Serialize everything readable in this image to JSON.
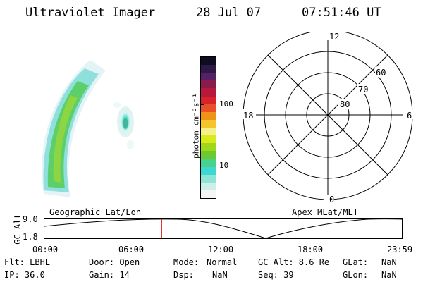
{
  "header": {
    "title": "Ultraviolet Imager",
    "date": "28 Jul 07",
    "time": "07:51:46 UT"
  },
  "colorbar": {
    "unit_label": "photon cm⁻²s⁻¹",
    "ticks": [
      "100",
      "10"
    ]
  },
  "polar": {
    "mlt_labels": {
      "top": "12",
      "left": "18",
      "right": "6",
      "bottom": "0"
    },
    "lat_labels": [
      "60",
      "70",
      "80"
    ]
  },
  "orbit": {
    "left_label": "Geographic Lat/Lon",
    "right_label": "Apex MLat/MLT",
    "y_axis_label": "GC Alt",
    "y_ticks": [
      "9.0",
      "1.8"
    ],
    "x_ticks": [
      "00:00",
      "06:00",
      "12:00",
      "18:00",
      "23:59"
    ],
    "current_time_fraction": 0.328
  },
  "info": {
    "row1": {
      "flt": "Flt: LBHL",
      "door": "Door: Open",
      "mode_label": "Mode:",
      "mode_value": "Normal",
      "gcalt": "GC Alt: 8.6 Re",
      "glat_label": "GLat:",
      "glat_value": "NaN"
    },
    "row2": {
      "ip": "IP: 36.0",
      "gain": "Gain: 14",
      "dsp_label": "Dsp:",
      "dsp_value": "NaN",
      "seq": "Seq: 39",
      "glon_label": "GLon:",
      "glon_value": "NaN"
    }
  },
  "colors": {
    "marker": "#e00000",
    "scale": [
      "#f2f6f5",
      "#cfeee8",
      "#8fe4d8",
      "#3fd8d0",
      "#46d38f",
      "#6cc92f",
      "#9fd81a",
      "#d7ea1c",
      "#f4f08c",
      "#f3c62b",
      "#ef9318",
      "#e8502a",
      "#d8232d",
      "#b7193a",
      "#8a1b4f",
      "#552064",
      "#2c1945",
      "#0f0b22"
    ]
  }
}
